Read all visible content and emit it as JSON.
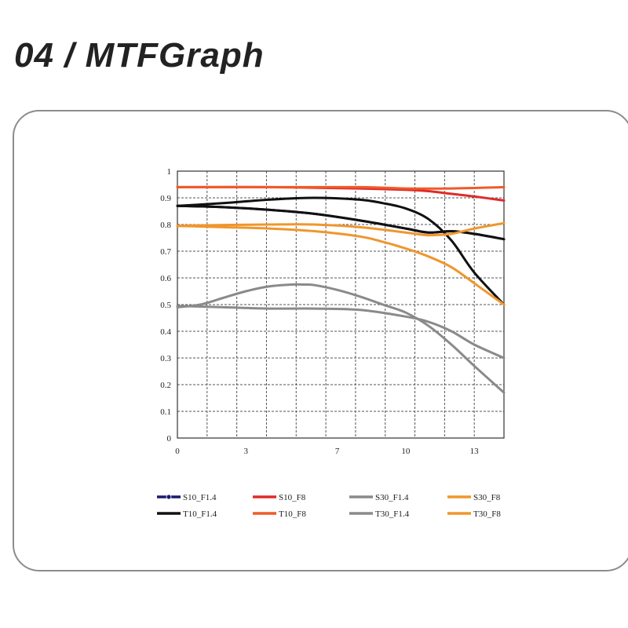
{
  "header": {
    "title": "04 / MTFGraph"
  },
  "chart_data": {
    "type": "line",
    "title": "",
    "xlabel": "",
    "ylabel": "",
    "xlim": [
      0,
      14.3
    ],
    "ylim": [
      0,
      1
    ],
    "x_ticks": [
      0,
      3,
      7,
      10,
      13
    ],
    "x_tick_labels": [
      "0",
      "3",
      "7",
      "10",
      "13"
    ],
    "y_ticks": [
      0,
      0.1,
      0.2,
      0.3,
      0.4,
      0.5,
      0.6,
      0.7,
      0.8,
      0.9,
      1
    ],
    "y_tick_labels": [
      "0",
      "0.1",
      "0.2",
      "0.3",
      "0.4",
      "0.5",
      "0.6",
      "0.7",
      "0.8",
      "0.9",
      "1"
    ],
    "grid": true,
    "legend_position": "bottom",
    "series": [
      {
        "name": "S10_F1.4",
        "color": "#1a1a6e",
        "hidden_behind": true,
        "x": [
          0,
          2,
          4,
          6,
          8,
          10,
          11,
          12,
          13,
          14.3
        ],
        "y": [
          0.87,
          0.865,
          0.855,
          0.84,
          0.815,
          0.785,
          0.77,
          0.775,
          0.765,
          0.745
        ]
      },
      {
        "name": "T10_F1.4",
        "color": "#111111",
        "x": [
          0,
          2,
          4,
          6,
          8,
          9,
          10,
          11,
          12,
          13,
          14.3
        ],
        "y": [
          0.87,
          0.88,
          0.893,
          0.9,
          0.893,
          0.88,
          0.86,
          0.82,
          0.74,
          0.62,
          0.5
        ]
      },
      {
        "name": "S10_F1.4 (overlay)",
        "color": "#111111",
        "legend": false,
        "x": [
          0,
          2,
          4,
          6,
          8,
          10,
          11,
          12,
          13,
          14.3
        ],
        "y": [
          0.87,
          0.865,
          0.855,
          0.84,
          0.815,
          0.785,
          0.77,
          0.775,
          0.765,
          0.745
        ]
      },
      {
        "name": "S10_F8",
        "color": "#e02a2a",
        "x": [
          0,
          4,
          8,
          10,
          11,
          12,
          13,
          14.3
        ],
        "y": [
          0.94,
          0.94,
          0.935,
          0.93,
          0.925,
          0.915,
          0.905,
          0.89
        ]
      },
      {
        "name": "T10_F8",
        "color": "#f05a28",
        "x": [
          0,
          4,
          8,
          10,
          12,
          14.3
        ],
        "y": [
          0.94,
          0.94,
          0.94,
          0.935,
          0.935,
          0.94
        ]
      },
      {
        "name": "S30_F1.4",
        "color": "#8a8a8a",
        "x": [
          0,
          2,
          4,
          6,
          8,
          10,
          11,
          12,
          13,
          14.3
        ],
        "y": [
          0.495,
          0.49,
          0.485,
          0.485,
          0.48,
          0.455,
          0.435,
          0.4,
          0.35,
          0.3
        ]
      },
      {
        "name": "T30_F1.4",
        "color": "#8a8a8a",
        "x": [
          0,
          1,
          2,
          3,
          4,
          5,
          5.5,
          6,
          7,
          8,
          9,
          10,
          11,
          12,
          13,
          14.3
        ],
        "y": [
          0.49,
          0.5,
          0.525,
          0.55,
          0.568,
          0.575,
          0.575,
          0.573,
          0.555,
          0.53,
          0.5,
          0.47,
          0.42,
          0.35,
          0.27,
          0.17
        ]
      },
      {
        "name": "S30_F8",
        "color": "#f0962c",
        "x": [
          0,
          2,
          4,
          6,
          8,
          10,
          11,
          12,
          13,
          14.3
        ],
        "y": [
          0.795,
          0.798,
          0.8,
          0.8,
          0.79,
          0.77,
          0.76,
          0.765,
          0.785,
          0.805
        ]
      },
      {
        "name": "T30_F8",
        "color": "#f0962c",
        "x": [
          0,
          2,
          4,
          6,
          8,
          9,
          10,
          11,
          12,
          13,
          14.3
        ],
        "y": [
          0.795,
          0.79,
          0.785,
          0.775,
          0.755,
          0.735,
          0.71,
          0.68,
          0.64,
          0.58,
          0.5
        ]
      }
    ],
    "legend": [
      {
        "label": "S10_F1.4",
        "color": "#1a1a6e",
        "marker": true
      },
      {
        "label": "S10_F8",
        "color": "#e02a2a",
        "marker": false
      },
      {
        "label": "S30_F1.4",
        "color": "#8a8a8a",
        "marker": false
      },
      {
        "label": "S30_F8",
        "color": "#f0962c",
        "marker": false
      },
      {
        "label": "T10_F1.4",
        "color": "#111111",
        "marker": false
      },
      {
        "label": "T10_F8",
        "color": "#f05a28",
        "marker": false
      },
      {
        "label": "T30_F1.4",
        "color": "#8a8a8a",
        "marker": false
      },
      {
        "label": "T30_F8",
        "color": "#f0962c",
        "marker": false
      }
    ]
  }
}
